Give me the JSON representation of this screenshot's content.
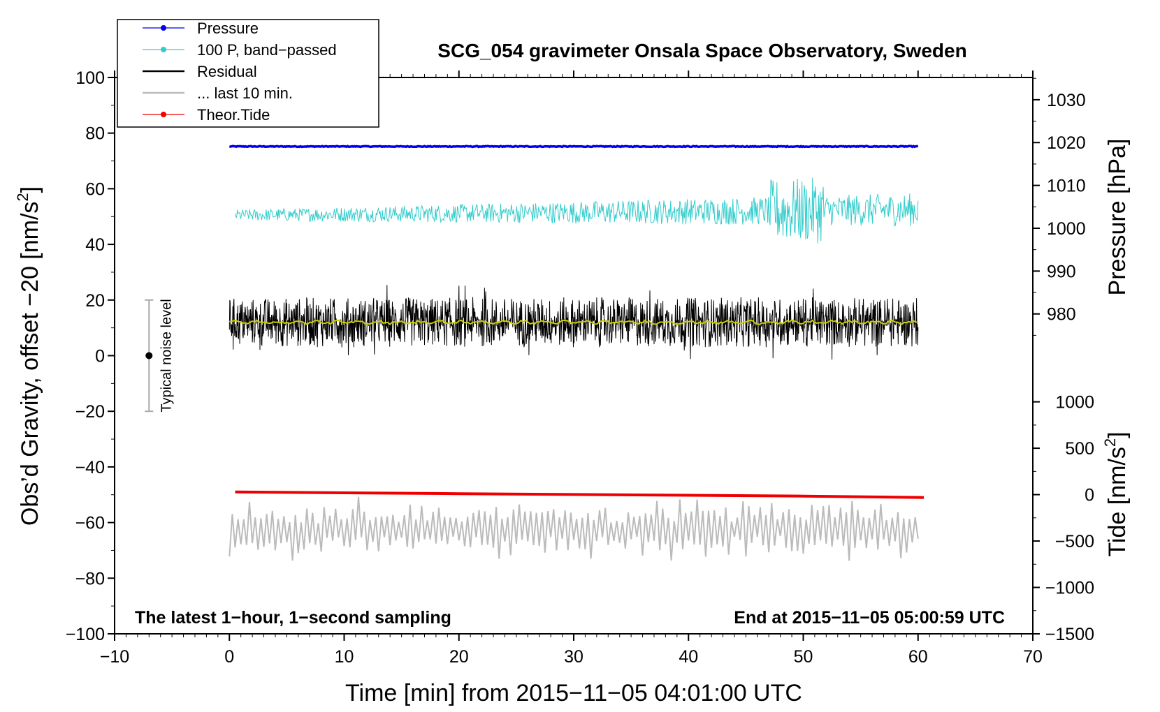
{
  "chart_data": {
    "type": "line",
    "title": "SCG_054 gravimeter Onsala Space Observatory, Sweden",
    "xlabel": "Time [min] from 2015−11−05 04:01:00 UTC",
    "ylabel": "Obs’d Gravity, offset −20 [nm/s",
    "ylabel_sup": "2",
    "ylabel_end": "]",
    "xlim": [
      -10,
      70
    ],
    "ylim": [
      -100,
      100
    ],
    "x_ticks": [
      -10,
      0,
      10,
      20,
      30,
      40,
      50,
      60,
      70
    ],
    "x_tick_labels": [
      "−10",
      "0",
      "10",
      "20",
      "30",
      "40",
      "50",
      "60",
      "70"
    ],
    "y_ticks": [
      -100,
      -80,
      -60,
      -40,
      -20,
      0,
      20,
      40,
      60,
      80,
      100
    ],
    "y_tick_labels": [
      "−100",
      "−80",
      "−60",
      "−40",
      "−20",
      "0",
      "20",
      "40",
      "60",
      "80",
      "100"
    ],
    "pressure_axis": {
      "label": "Pressure [hPa]",
      "ticks": [
        980,
        990,
        1000,
        1010,
        1020,
        1030
      ],
      "tick_labels": [
        "980",
        "990",
        "1000",
        "1010",
        "1020",
        "1030"
      ],
      "map": {
        "value_a": 980,
        "gravity_a": 15,
        "value_b": 1030,
        "gravity_b": 92
      }
    },
    "tide_axis": {
      "label": "Tide [nm/s",
      "label_sup": "2",
      "label_end": "]",
      "ticks": [
        -1500,
        -1000,
        -500,
        0,
        500,
        1000
      ],
      "tick_labels": [
        "−1500",
        "−1000",
        "−500",
        "0",
        "500",
        "1000"
      ],
      "map": {
        "value_a": -1500,
        "gravity_a": -100,
        "value_b": 1000,
        "gravity_b": -16.6
      }
    },
    "series": [
      {
        "name": "Pressure",
        "color": "#0000ee",
        "style": "line+marker",
        "x_range": [
          0,
          60
        ],
        "level": 75.2,
        "noise": 0.3
      },
      {
        "name": "100 P, band−passed",
        "color": "#33cccc",
        "style": "line+marker",
        "x_range": [
          0.5,
          60
        ],
        "level": 50.5,
        "amplitude_start": 2,
        "amplitude_end": 6
      },
      {
        "name": "Residual",
        "color": "#000000",
        "style": "line",
        "x_range": [
          0,
          60
        ],
        "level": 12,
        "amplitude": 9
      },
      {
        "name": "... last 10 min.",
        "color": "#bbbbbb",
        "style": "line",
        "x_range": [
          0,
          60
        ],
        "level": -62.5,
        "amplitude": 9
      },
      {
        "name": "Theor.Tide",
        "color": "#ee0000",
        "style": "line+marker",
        "x": [
          0.5,
          10,
          20,
          30,
          40,
          50,
          60.5
        ],
        "y": [
          -49,
          -49.3,
          -49.6,
          -49.9,
          -50.2,
          -50.5,
          -51
        ]
      }
    ],
    "running_mean": {
      "color": "#cccc00",
      "level": 12
    },
    "noise_bar": {
      "label": "Typical noise level",
      "x": -7,
      "center": 0,
      "half_range": 20
    },
    "legend_position": "top-left",
    "annotation_left": "The latest 1−hour, 1−second sampling",
    "annotation_right": "End at 2015−11−05 05:00:59 UTC",
    "grid": false
  }
}
